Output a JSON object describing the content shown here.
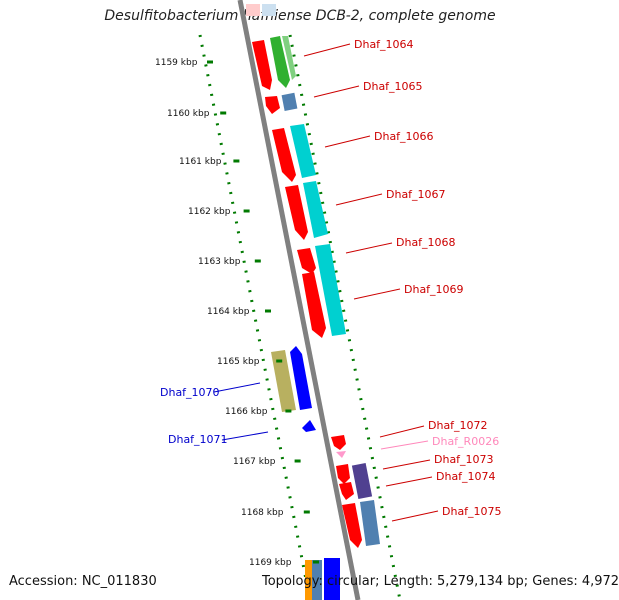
{
  "title": "Desulfitobacterium hafniense DCB-2, complete genome",
  "footer": {
    "accession": "Accession: NC_011830",
    "topology": "Topology: circular; Length: 5,279,134 bp; Genes: 4,972"
  },
  "kbp_ticks": [
    "1159 kbp",
    "1160 kbp",
    "1161 kbp",
    "1162 kbp",
    "1163 kbp",
    "1164 kbp",
    "1165 kbp",
    "1166 kbp",
    "1167 kbp",
    "1168 kbp",
    "1169 kbp"
  ],
  "colors": {
    "cds_red": "#ff0000",
    "teal": "#00d0d0",
    "blue": "#0000ff",
    "olive": "#b8b060",
    "green": "#30b030",
    "steel": "#5080b0",
    "purple": "#504090",
    "pink_rna": "#ff99cc",
    "label_forward": "#cc0000",
    "label_reverse": "#0000cc",
    "label_rna": "#ff88bb",
    "backbone": "#808080",
    "tick_green": "#007a00"
  },
  "genes": [
    {
      "id": "Dhaf_1064",
      "strand": "forward",
      "color": "#cc0000"
    },
    {
      "id": "Dhaf_1065",
      "strand": "forward",
      "color": "#cc0000"
    },
    {
      "id": "Dhaf_1066",
      "strand": "forward",
      "color": "#cc0000"
    },
    {
      "id": "Dhaf_1067",
      "strand": "forward",
      "color": "#cc0000"
    },
    {
      "id": "Dhaf_1068",
      "strand": "forward",
      "color": "#cc0000"
    },
    {
      "id": "Dhaf_1069",
      "strand": "forward",
      "color": "#cc0000"
    },
    {
      "id": "Dhaf_1070",
      "strand": "reverse",
      "color": "#0000cc"
    },
    {
      "id": "Dhaf_1071",
      "strand": "reverse",
      "color": "#0000cc"
    },
    {
      "id": "Dhaf_1072",
      "strand": "forward",
      "color": "#cc0000"
    },
    {
      "id": "Dhaf_R0026",
      "strand": "forward",
      "color": "#ff88bb"
    },
    {
      "id": "Dhaf_1073",
      "strand": "forward",
      "color": "#cc0000"
    },
    {
      "id": "Dhaf_1074",
      "strand": "forward",
      "color": "#cc0000"
    },
    {
      "id": "Dhaf_1075",
      "strand": "forward",
      "color": "#cc0000"
    }
  ]
}
